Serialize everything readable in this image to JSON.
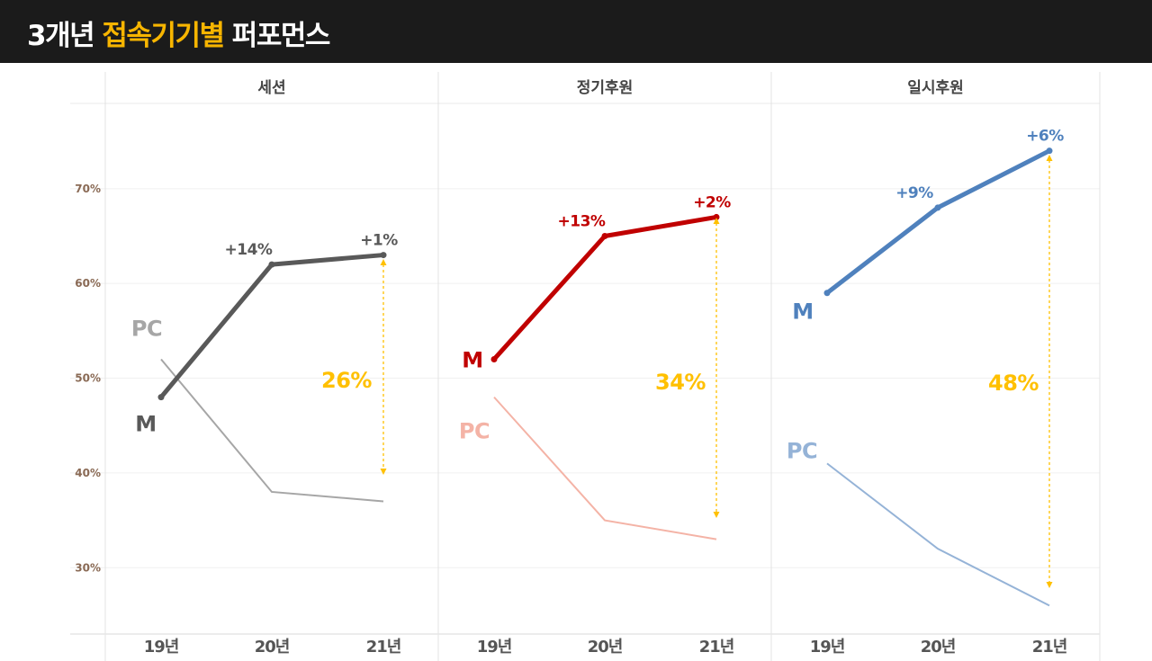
{
  "header": {
    "title_pre": "3개년 ",
    "title_highlight": "접속기기별",
    "title_post": " 퍼포먼스"
  },
  "chart_data": {
    "type": "line",
    "y_ticks": [
      "70%",
      "60%",
      "50%",
      "40%",
      "30%"
    ],
    "y_tick_values": [
      70,
      60,
      50,
      40,
      30
    ],
    "ylim": [
      23,
      79
    ],
    "categories": [
      "19년",
      "20년",
      "21년"
    ],
    "panels": [
      {
        "title": "세션",
        "color_m": "#595959",
        "color_pc": "#a6a6a6",
        "series": [
          {
            "name": "M",
            "values": [
              48,
              62,
              63
            ]
          },
          {
            "name": "PC",
            "values": [
              52,
              38,
              37
            ]
          }
        ],
        "growth_labels": [
          "+14%",
          "+1%"
        ],
        "gap_label": "26%"
      },
      {
        "title": "정기후원",
        "color_m": "#c00000",
        "color_pc": "#f4b3a6",
        "series": [
          {
            "name": "M",
            "values": [
              52,
              65,
              67
            ]
          },
          {
            "name": "PC",
            "values": [
              48,
              35,
              33
            ]
          }
        ],
        "growth_labels": [
          "+13%",
          "+2%"
        ],
        "gap_label": "34%"
      },
      {
        "title": "일시후원",
        "color_m": "#4f81bd",
        "color_pc": "#95b3d7",
        "series": [
          {
            "name": "M",
            "values": [
              59,
              68,
              74
            ]
          },
          {
            "name": "PC",
            "values": [
              41,
              32,
              26
            ]
          }
        ],
        "growth_labels": [
          "+9%",
          "+6%"
        ],
        "gap_label": "48%"
      }
    ],
    "gap_color": "#ffc000"
  }
}
